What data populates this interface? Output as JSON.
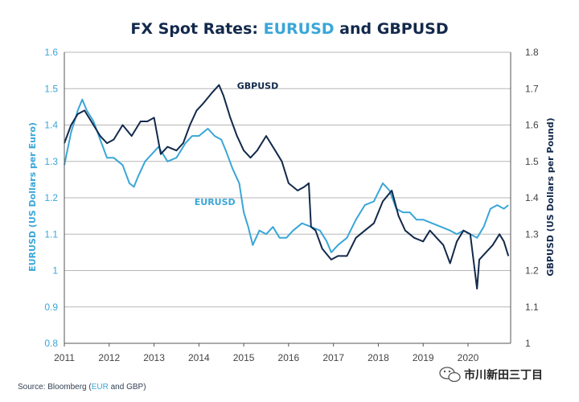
{
  "colors": {
    "eur": "#3aa6d8",
    "gbp": "#13294b",
    "grid": "#b7b7b7",
    "axis": "#555555",
    "text_dark": "#13294b"
  },
  "chart_data": {
    "type": "line",
    "title_parts": [
      "FX Spot Rates: ",
      "EURUSD",
      " and ",
      "GBPUSD"
    ],
    "ylabel_left": "EURUSD (US Dollars per Euro)",
    "ylabel_right": "GBPUSD (US Dollars per Pound)",
    "xlabel": "",
    "x_ticks": [
      "2011",
      "2012",
      "2013",
      "2014",
      "2015",
      "2016",
      "2017",
      "2018",
      "2019",
      "2020"
    ],
    "xlim": [
      2011.0,
      2020.95
    ],
    "y_left": {
      "lim": [
        0.8,
        1.6
      ],
      "ticks": [
        "0.8",
        "0.9",
        "1",
        "1.1",
        "1.2",
        "1.3",
        "1.4",
        "1.5",
        "1.6"
      ]
    },
    "y_right": {
      "lim": [
        1.0,
        1.8
      ],
      "ticks": [
        "1",
        "1.1",
        "1.2",
        "1.3",
        "1.4",
        "1.5",
        "1.6",
        "1.7",
        "1.8"
      ]
    },
    "grid": true,
    "series": [
      {
        "name": "EURUSD",
        "axis": "left",
        "x": [
          2011.0,
          2011.15,
          2011.3,
          2011.4,
          2011.5,
          2011.65,
          2011.8,
          2011.95,
          2012.1,
          2012.3,
          2012.45,
          2012.55,
          2012.65,
          2012.8,
          2012.95,
          2013.1,
          2013.3,
          2013.5,
          2013.7,
          2013.85,
          2014.0,
          2014.2,
          2014.35,
          2014.5,
          2014.6,
          2014.75,
          2014.9,
          2015.0,
          2015.1,
          2015.2,
          2015.35,
          2015.5,
          2015.65,
          2015.8,
          2015.95,
          2016.1,
          2016.3,
          2016.5,
          2016.7,
          2016.85,
          2016.95,
          2017.1,
          2017.3,
          2017.5,
          2017.7,
          2017.9,
          2018.1,
          2018.25,
          2018.4,
          2018.55,
          2018.7,
          2018.85,
          2019.0,
          2019.2,
          2019.4,
          2019.6,
          2019.75,
          2019.9,
          2020.05,
          2020.2,
          2020.35,
          2020.5,
          2020.65,
          2020.8,
          2020.9
        ],
        "y": [
          1.29,
          1.38,
          1.44,
          1.47,
          1.44,
          1.41,
          1.36,
          1.31,
          1.31,
          1.29,
          1.24,
          1.23,
          1.26,
          1.3,
          1.32,
          1.34,
          1.3,
          1.31,
          1.35,
          1.37,
          1.37,
          1.39,
          1.37,
          1.36,
          1.33,
          1.28,
          1.24,
          1.16,
          1.12,
          1.07,
          1.11,
          1.1,
          1.12,
          1.09,
          1.09,
          1.11,
          1.13,
          1.12,
          1.11,
          1.08,
          1.05,
          1.07,
          1.09,
          1.14,
          1.18,
          1.19,
          1.24,
          1.22,
          1.17,
          1.16,
          1.16,
          1.14,
          1.14,
          1.13,
          1.12,
          1.11,
          1.1,
          1.11,
          1.1,
          1.09,
          1.12,
          1.17,
          1.18,
          1.17,
          1.18
        ]
      },
      {
        "name": "GBPUSD",
        "axis": "right",
        "x": [
          2011.0,
          2011.15,
          2011.3,
          2011.45,
          2011.6,
          2011.8,
          2011.95,
          2012.1,
          2012.3,
          2012.5,
          2012.7,
          2012.85,
          2013.0,
          2013.15,
          2013.3,
          2013.5,
          2013.65,
          2013.8,
          2013.95,
          2014.1,
          2014.3,
          2014.45,
          2014.55,
          2014.7,
          2014.85,
          2015.0,
          2015.15,
          2015.3,
          2015.5,
          2015.7,
          2015.85,
          2016.0,
          2016.2,
          2016.35,
          2016.45,
          2016.5,
          2016.6,
          2016.75,
          2016.95,
          2017.1,
          2017.3,
          2017.5,
          2017.7,
          2017.9,
          2018.1,
          2018.3,
          2018.45,
          2018.6,
          2018.8,
          2019.0,
          2019.15,
          2019.3,
          2019.45,
          2019.6,
          2019.75,
          2019.9,
          2020.05,
          2020.2,
          2020.25,
          2020.4,
          2020.55,
          2020.7,
          2020.8,
          2020.9
        ],
        "y": [
          1.55,
          1.6,
          1.63,
          1.64,
          1.61,
          1.57,
          1.55,
          1.56,
          1.6,
          1.57,
          1.61,
          1.61,
          1.62,
          1.52,
          1.54,
          1.53,
          1.55,
          1.6,
          1.64,
          1.66,
          1.69,
          1.71,
          1.68,
          1.62,
          1.57,
          1.53,
          1.51,
          1.53,
          1.57,
          1.53,
          1.5,
          1.44,
          1.42,
          1.43,
          1.44,
          1.32,
          1.31,
          1.26,
          1.23,
          1.24,
          1.24,
          1.29,
          1.31,
          1.33,
          1.39,
          1.42,
          1.35,
          1.31,
          1.29,
          1.28,
          1.31,
          1.29,
          1.27,
          1.22,
          1.28,
          1.31,
          1.3,
          1.15,
          1.23,
          1.25,
          1.27,
          1.3,
          1.28,
          1.24
        ]
      }
    ],
    "annotations": [
      {
        "text": "GBPUSD",
        "x": 2014.85,
        "y_right": 1.7,
        "series": "gbp"
      },
      {
        "text": "EURUSD",
        "x": 2013.9,
        "y_left": 1.18,
        "series": "eur"
      }
    ]
  },
  "source": {
    "prefix": "Source: Bloomberg (",
    "eur": "EUR",
    "middle": " and GBP)"
  },
  "watermark": "市川新田三丁目"
}
